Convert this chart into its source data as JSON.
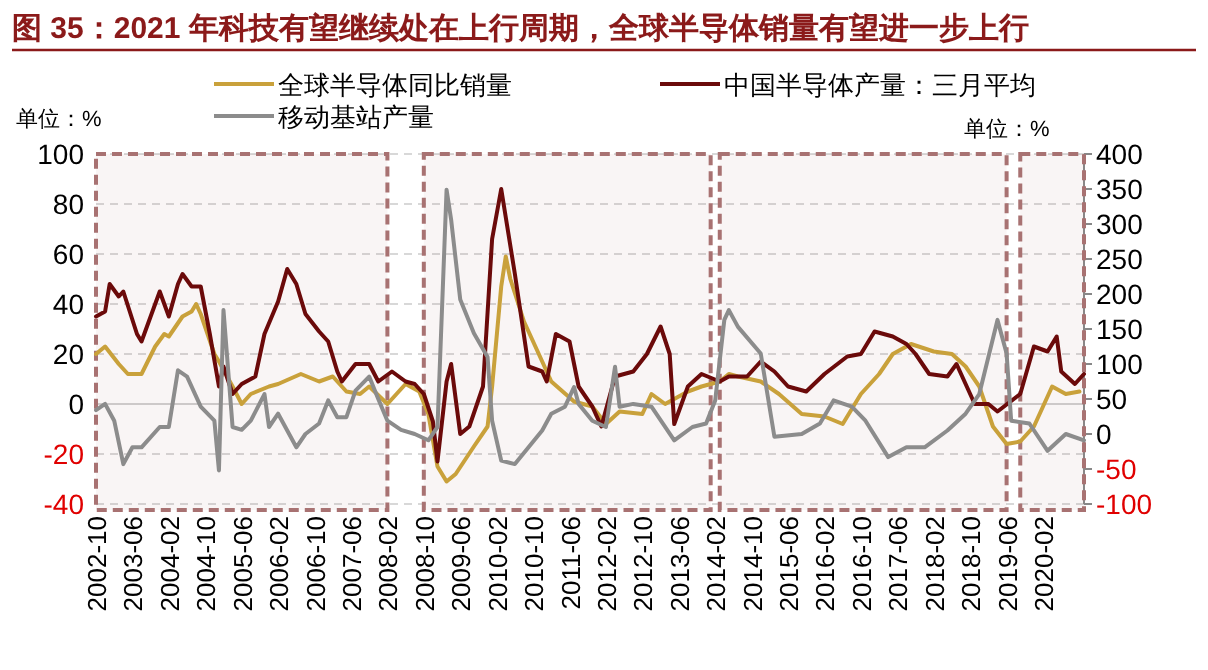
{
  "chart_data": {
    "type": "line",
    "title": "图 35：2021 年科技有望继续处在上行周期，全球半导体销量有望进一步上行",
    "ylabel": "单位：%",
    "y2label": "单位：%",
    "xlim": [
      "2002-10",
      "2020-11"
    ],
    "xticks": [
      "2002-10",
      "2003-06",
      "2004-02",
      "2004-10",
      "2005-06",
      "2006-02",
      "2006-10",
      "2007-06",
      "2008-02",
      "2008-10",
      "2009-06",
      "2010-02",
      "2010-10",
      "2011-06",
      "2012-02",
      "2012-10",
      "2013-06",
      "2014-02",
      "2014-10",
      "2015-06",
      "2016-02",
      "2016-10",
      "2017-06",
      "2018-02",
      "2018-10",
      "2019-06",
      "2020-02"
    ],
    "ylim": [
      -40,
      100
    ],
    "yticks": [
      -40,
      -20,
      0,
      20,
      40,
      60,
      80,
      100
    ],
    "y2lim": [
      -100,
      400
    ],
    "y2ticks": [
      -100,
      -50,
      0,
      50,
      100,
      150,
      200,
      250,
      300,
      350,
      400
    ],
    "grid": "y",
    "legend": "top",
    "line_style": "solid",
    "series": [
      {
        "name": "全球半导体同比销量",
        "color": "#c9a13b",
        "x": [
          "2002-10",
          "2002-12",
          "2003-03",
          "2003-05",
          "2003-08",
          "2003-11",
          "2004-01",
          "2004-02",
          "2004-05",
          "2004-07",
          "2004-08",
          "2004-09",
          "2004-12",
          "2005-01",
          "2005-04",
          "2005-06",
          "2005-08",
          "2005-12",
          "2006-02",
          "2006-07",
          "2006-11",
          "2007-02",
          "2007-05",
          "2007-08",
          "2007-10",
          "2008-02",
          "2008-06",
          "2008-09",
          "2008-11",
          "2009-01",
          "2009-03",
          "2009-05",
          "2009-09",
          "2009-12",
          "2010-01",
          "2010-03",
          "2010-04",
          "2010-05",
          "2010-08",
          "2010-12",
          "2011-02",
          "2011-07",
          "2011-11",
          "2012-02",
          "2012-05",
          "2012-10",
          "2012-12",
          "2013-03",
          "2013-08",
          "2013-11",
          "2014-03",
          "2014-05",
          "2014-07",
          "2014-12",
          "2015-04",
          "2015-09",
          "2016-02",
          "2016-06",
          "2016-10",
          "2017-02",
          "2017-05",
          "2017-09",
          "2018-02",
          "2018-06",
          "2018-09",
          "2018-12",
          "2019-03",
          "2019-06",
          "2019-09",
          "2019-12",
          "2020-04",
          "2020-07",
          "2020-10"
        ],
        "values": [
          20,
          23,
          16,
          12,
          12,
          23,
          28,
          27,
          35,
          37,
          40,
          36,
          20,
          17,
          7,
          0,
          4,
          7,
          8,
          12,
          9,
          11,
          5,
          4,
          7,
          0,
          8,
          5,
          -4,
          -25,
          -31,
          -28,
          -17,
          -9,
          7,
          47,
          59,
          50,
          33,
          17,
          9,
          1,
          -1,
          -8,
          -3,
          -4,
          4,
          0,
          5,
          7,
          9,
          12,
          11,
          9,
          4,
          -4,
          -5,
          -8,
          4,
          12,
          20,
          24,
          21,
          20,
          15,
          7,
          -9,
          -16,
          -15,
          -9,
          7,
          4,
          5
        ]
      },
      {
        "name": "中国半导体产量：三月平均",
        "color": "#6b0a0a",
        "x": [
          "2002-10",
          "2002-12",
          "2003-01",
          "2003-03",
          "2003-04",
          "2003-07",
          "2003-08",
          "2003-11",
          "2003-12",
          "2004-02",
          "2004-04",
          "2004-05",
          "2004-07",
          "2004-09",
          "2004-11",
          "2005-01",
          "2005-02",
          "2005-04",
          "2005-06",
          "2005-09",
          "2005-11",
          "2006-02",
          "2006-04",
          "2006-06",
          "2006-08",
          "2006-11",
          "2007-01",
          "2007-03",
          "2007-04",
          "2007-07",
          "2007-10",
          "2007-12",
          "2008-03",
          "2008-06",
          "2008-08",
          "2008-10",
          "2008-12",
          "2009-01",
          "2009-03",
          "2009-04",
          "2009-06",
          "2009-08",
          "2009-11",
          "2010-01",
          "2010-03",
          "2010-06",
          "2010-09",
          "2010-12",
          "2011-01",
          "2011-03",
          "2011-06",
          "2011-08",
          "2011-11",
          "2012-01",
          "2012-04",
          "2012-08",
          "2012-11",
          "2013-02",
          "2013-04",
          "2013-05",
          "2013-08",
          "2013-11",
          "2014-03",
          "2014-05",
          "2014-09",
          "2014-12",
          "2015-03",
          "2015-06",
          "2015-10",
          "2016-02",
          "2016-07",
          "2016-10",
          "2017-01",
          "2017-05",
          "2017-08",
          "2017-10",
          "2018-01",
          "2018-05",
          "2018-07",
          "2018-11",
          "2019-02",
          "2019-04",
          "2019-09",
          "2019-12",
          "2020-03",
          "2020-05",
          "2020-06",
          "2020-09",
          "2020-11"
        ],
        "values": [
          35,
          37,
          48,
          43,
          45,
          28,
          25,
          40,
          45,
          35,
          48,
          52,
          47,
          47,
          28,
          7,
          15,
          4,
          8,
          11,
          28,
          41,
          54,
          48,
          36,
          29,
          25,
          13,
          9,
          16,
          16,
          9,
          13,
          9,
          8,
          4,
          -7,
          -23,
          9,
          16,
          -12,
          -9,
          7,
          66,
          86,
          52,
          15,
          13,
          9,
          28,
          25,
          7,
          -1,
          -9,
          11,
          13,
          20,
          31,
          20,
          -8,
          7,
          12,
          9,
          11,
          11,
          17,
          13,
          7,
          5,
          12,
          19,
          20,
          29,
          27,
          24,
          20,
          12,
          11,
          16,
          0,
          0,
          -3,
          4,
          23,
          21,
          27,
          13,
          8,
          12
        ]
      },
      {
        "name": "移动基站产量",
        "color": "#8c8c8c",
        "axis": "y2",
        "x": [
          "2002-10",
          "2002-12",
          "2003-02",
          "2003-04",
          "2003-06",
          "2003-08",
          "2003-12",
          "2004-02",
          "2004-04",
          "2004-06",
          "2004-09",
          "2004-12",
          "2005-01",
          "2005-02",
          "2005-04",
          "2005-06",
          "2005-08",
          "2005-11",
          "2005-12",
          "2006-02",
          "2006-06",
          "2006-08",
          "2006-11",
          "2007-01",
          "2007-03",
          "2007-05",
          "2007-07",
          "2007-10",
          "2007-12",
          "2008-02",
          "2008-05",
          "2008-08",
          "2008-11",
          "2009-01",
          "2009-03",
          "2009-04",
          "2009-06",
          "2009-09",
          "2009-12",
          "2010-01",
          "2010-03",
          "2010-06",
          "2010-09",
          "2010-12",
          "2011-02",
          "2011-05",
          "2011-07",
          "2011-08",
          "2011-11",
          "2012-02",
          "2012-04",
          "2012-05",
          "2012-08",
          "2012-12",
          "2013-05",
          "2013-09",
          "2013-12",
          "2014-02",
          "2014-04",
          "2014-05",
          "2014-07",
          "2014-12",
          "2015-03",
          "2015-09",
          "2016-01",
          "2016-04",
          "2016-08",
          "2016-11",
          "2017-04",
          "2017-08",
          "2017-12",
          "2018-05",
          "2018-09",
          "2018-12",
          "2019-04",
          "2019-06",
          "2019-07",
          "2019-11",
          "2020-03",
          "2020-07",
          "2020-11"
        ],
        "values": [
          34,
          43,
          19,
          -43,
          -19,
          -19,
          10,
          10,
          91,
          82,
          39,
          19,
          -52,
          177,
          10,
          6,
          19,
          57,
          10,
          29,
          -19,
          0,
          15,
          48,
          24,
          24,
          62,
          82,
          50,
          19,
          6,
          0,
          -9,
          10,
          349,
          306,
          192,
          144,
          110,
          19,
          -38,
          -43,
          -19,
          5,
          29,
          39,
          67,
          43,
          19,
          10,
          96,
          39,
          43,
          39,
          -9,
          10,
          15,
          48,
          163,
          177,
          153,
          115,
          -4,
          0,
          15,
          48,
          39,
          19,
          -33,
          -19,
          -19,
          5,
          29,
          57,
          163,
          115,
          19,
          15,
          -24,
          0,
          -9
        ]
      }
    ],
    "bands": [
      {
        "axis": "x",
        "from": "2002-10",
        "to": "2008-02",
        "color": "#a87272"
      },
      {
        "axis": "x",
        "from": "2008-10",
        "to": "2014-01",
        "color": "#a87272"
      },
      {
        "axis": "x",
        "from": "2014-03",
        "to": "2019-06",
        "color": "#a87272"
      },
      {
        "axis": "x",
        "from": "2019-09",
        "to": "2020-11",
        "color": "#a87272"
      }
    ]
  }
}
